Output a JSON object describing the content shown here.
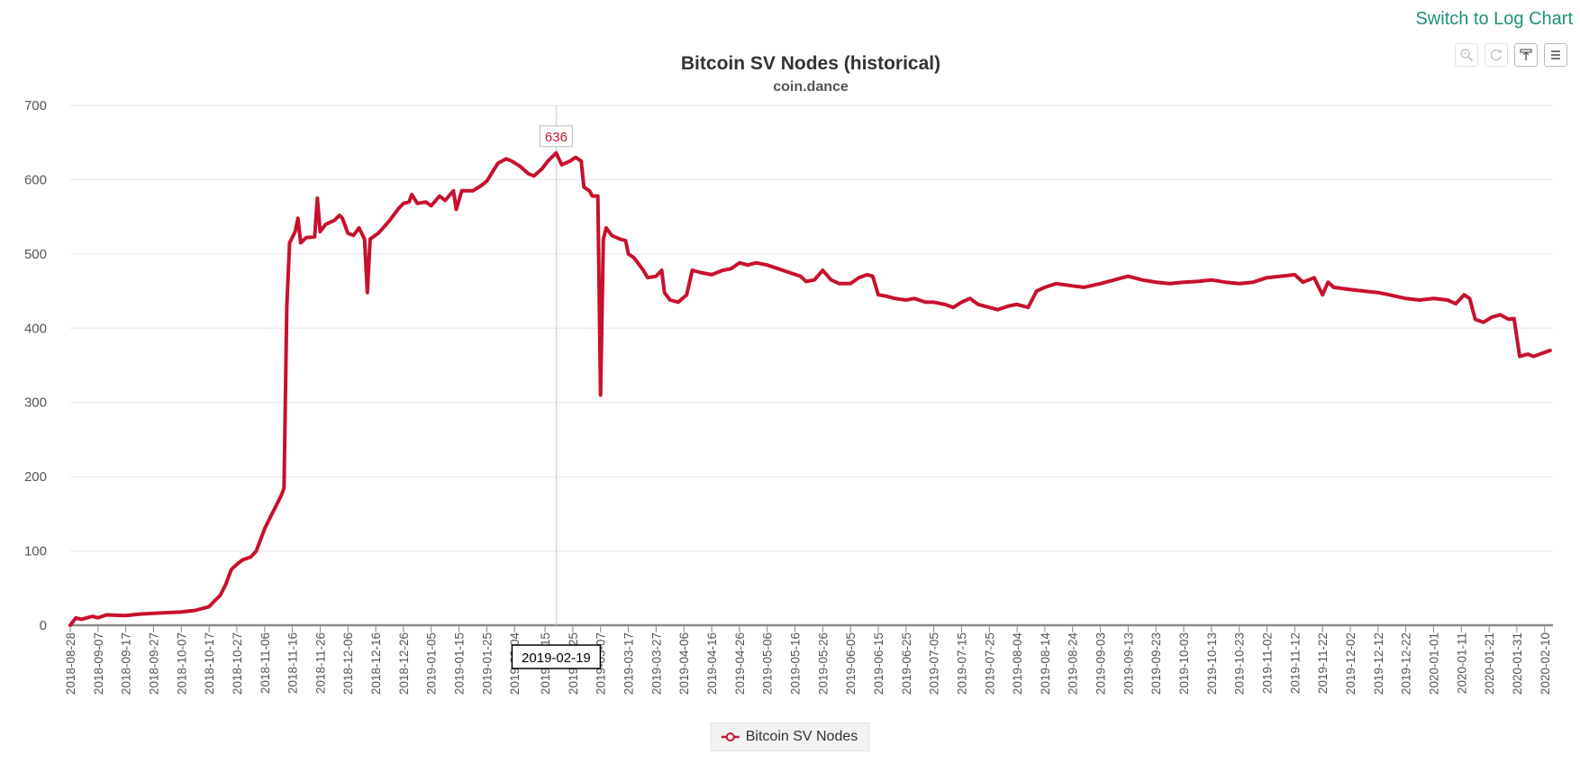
{
  "header": {
    "log_link": "Switch to Log Chart"
  },
  "toolbar": {
    "icons": [
      "zoom-icon",
      "refresh-icon",
      "reset-zoom-icon",
      "menu-icon"
    ]
  },
  "tooltip": {
    "value_label": "636",
    "date_label": "2019-02-19",
    "date": "2019-02-19"
  },
  "legend": {
    "label": "Bitcoin SV Nodes"
  },
  "colors": {
    "series": "#c8102e",
    "link": "#1f8f7a",
    "grid": "#e6e6e6",
    "axis": "#8a8a8a"
  },
  "chart_data": {
    "type": "line",
    "title": "Bitcoin SV Nodes (historical)",
    "subtitle": "coin.dance",
    "xlabel": "",
    "ylabel": "",
    "ylim": [
      0,
      700
    ],
    "xlim": [
      "2018-08-28",
      "2020-02-13"
    ],
    "yticks": [
      0,
      100,
      200,
      300,
      400,
      500,
      600,
      700
    ],
    "xticks": [
      "2018-08-28",
      "2018-09-07",
      "2018-09-17",
      "2018-09-27",
      "2018-10-07",
      "2018-10-17",
      "2018-10-27",
      "2018-11-06",
      "2018-11-16",
      "2018-11-26",
      "2018-12-06",
      "2018-12-16",
      "2018-12-26",
      "2019-01-05",
      "2019-01-15",
      "2019-01-25",
      "2019-02-04",
      "2019-02-15",
      "2019-02-25",
      "2019-03-07",
      "2019-03-17",
      "2019-03-27",
      "2019-04-06",
      "2019-04-16",
      "2019-04-26",
      "2019-05-06",
      "2019-05-16",
      "2019-05-26",
      "2019-06-05",
      "2019-06-15",
      "2019-06-25",
      "2019-07-05",
      "2019-07-15",
      "2019-07-25",
      "2019-08-04",
      "2019-08-14",
      "2019-08-24",
      "2019-09-03",
      "2019-09-13",
      "2019-09-23",
      "2019-10-03",
      "2019-10-13",
      "2019-10-23",
      "2019-11-02",
      "2019-11-12",
      "2019-11-22",
      "2019-12-02",
      "2019-12-12",
      "2019-12-22",
      "2020-01-01",
      "2020-01-11",
      "2020-01-21",
      "2020-01-31",
      "2020-02-10"
    ],
    "grid": true,
    "legend_position": "bottom-center",
    "series": [
      {
        "name": "Bitcoin SV Nodes",
        "points": [
          [
            "2018-08-28",
            0
          ],
          [
            "2018-08-30",
            10
          ],
          [
            "2018-09-01",
            8
          ],
          [
            "2018-09-05",
            12
          ],
          [
            "2018-09-07",
            10
          ],
          [
            "2018-09-10",
            14
          ],
          [
            "2018-09-17",
            13
          ],
          [
            "2018-09-22",
            15
          ],
          [
            "2018-09-27",
            16
          ],
          [
            "2018-10-02",
            17
          ],
          [
            "2018-10-07",
            18
          ],
          [
            "2018-10-12",
            20
          ],
          [
            "2018-10-17",
            25
          ],
          [
            "2018-10-19",
            33
          ],
          [
            "2018-10-21",
            40
          ],
          [
            "2018-10-23",
            55
          ],
          [
            "2018-10-25",
            75
          ],
          [
            "2018-10-27",
            82
          ],
          [
            "2018-10-29",
            88
          ],
          [
            "2018-11-01",
            92
          ],
          [
            "2018-11-03",
            100
          ],
          [
            "2018-11-05",
            120
          ],
          [
            "2018-11-06",
            130
          ],
          [
            "2018-11-08",
            145
          ],
          [
            "2018-11-10",
            160
          ],
          [
            "2018-11-12",
            175
          ],
          [
            "2018-11-13",
            185
          ],
          [
            "2018-11-14",
            430
          ],
          [
            "2018-11-15",
            515
          ],
          [
            "2018-11-17",
            530
          ],
          [
            "2018-11-18",
            548
          ],
          [
            "2018-11-19",
            515
          ],
          [
            "2018-11-21",
            522
          ],
          [
            "2018-11-24",
            523
          ],
          [
            "2018-11-25",
            575
          ],
          [
            "2018-11-26",
            530
          ],
          [
            "2018-11-28",
            540
          ],
          [
            "2018-12-01",
            545
          ],
          [
            "2018-12-03",
            552
          ],
          [
            "2018-12-04",
            548
          ],
          [
            "2018-12-06",
            528
          ],
          [
            "2018-12-08",
            525
          ],
          [
            "2018-12-10",
            535
          ],
          [
            "2018-12-12",
            520
          ],
          [
            "2018-12-13",
            448
          ],
          [
            "2018-12-14",
            520
          ],
          [
            "2018-12-17",
            528
          ],
          [
            "2018-12-21",
            545
          ],
          [
            "2018-12-24",
            560
          ],
          [
            "2018-12-26",
            568
          ],
          [
            "2018-12-28",
            570
          ],
          [
            "2018-12-29",
            580
          ],
          [
            "2018-12-31",
            568
          ],
          [
            "2019-01-03",
            570
          ],
          [
            "2019-01-05",
            565
          ],
          [
            "2019-01-08",
            578
          ],
          [
            "2019-01-10",
            572
          ],
          [
            "2019-01-13",
            585
          ],
          [
            "2019-01-14",
            560
          ],
          [
            "2019-01-16",
            585
          ],
          [
            "2019-01-20",
            585
          ],
          [
            "2019-01-23",
            592
          ],
          [
            "2019-01-25",
            598
          ],
          [
            "2019-01-27",
            610
          ],
          [
            "2019-01-29",
            622
          ],
          [
            "2019-02-01",
            628
          ],
          [
            "2019-02-03",
            625
          ],
          [
            "2019-02-06",
            618
          ],
          [
            "2019-02-09",
            608
          ],
          [
            "2019-02-11",
            605
          ],
          [
            "2019-02-14",
            615
          ],
          [
            "2019-02-16",
            625
          ],
          [
            "2019-02-19",
            636
          ],
          [
            "2019-02-21",
            620
          ],
          [
            "2019-02-24",
            625
          ],
          [
            "2019-02-26",
            630
          ],
          [
            "2019-02-28",
            625
          ],
          [
            "2019-03-01",
            590
          ],
          [
            "2019-03-03",
            585
          ],
          [
            "2019-03-04",
            578
          ],
          [
            "2019-03-06",
            578
          ],
          [
            "2019-03-07",
            310
          ],
          [
            "2019-03-08",
            520
          ],
          [
            "2019-03-09",
            535
          ],
          [
            "2019-03-11",
            525
          ],
          [
            "2019-03-14",
            520
          ],
          [
            "2019-03-16",
            518
          ],
          [
            "2019-03-17",
            500
          ],
          [
            "2019-03-19",
            495
          ],
          [
            "2019-03-22",
            480
          ],
          [
            "2019-03-24",
            468
          ],
          [
            "2019-03-27",
            470
          ],
          [
            "2019-03-29",
            478
          ],
          [
            "2019-03-30",
            448
          ],
          [
            "2019-04-01",
            438
          ],
          [
            "2019-04-04",
            435
          ],
          [
            "2019-04-07",
            445
          ],
          [
            "2019-04-09",
            478
          ],
          [
            "2019-04-12",
            475
          ],
          [
            "2019-04-16",
            472
          ],
          [
            "2019-04-20",
            478
          ],
          [
            "2019-04-23",
            480
          ],
          [
            "2019-04-26",
            488
          ],
          [
            "2019-04-29",
            485
          ],
          [
            "2019-05-02",
            488
          ],
          [
            "2019-05-06",
            485
          ],
          [
            "2019-05-10",
            480
          ],
          [
            "2019-05-14",
            475
          ],
          [
            "2019-05-18",
            470
          ],
          [
            "2019-05-20",
            463
          ],
          [
            "2019-05-23",
            465
          ],
          [
            "2019-05-26",
            478
          ],
          [
            "2019-05-29",
            465
          ],
          [
            "2019-06-01",
            460
          ],
          [
            "2019-06-05",
            460
          ],
          [
            "2019-06-08",
            468
          ],
          [
            "2019-06-11",
            472
          ],
          [
            "2019-06-13",
            470
          ],
          [
            "2019-06-15",
            445
          ],
          [
            "2019-06-18",
            443
          ],
          [
            "2019-06-21",
            440
          ],
          [
            "2019-06-25",
            438
          ],
          [
            "2019-06-28",
            440
          ],
          [
            "2019-07-02",
            435
          ],
          [
            "2019-07-05",
            435
          ],
          [
            "2019-07-09",
            432
          ],
          [
            "2019-07-12",
            428
          ],
          [
            "2019-07-15",
            435
          ],
          [
            "2019-07-18",
            440
          ],
          [
            "2019-07-21",
            432
          ],
          [
            "2019-07-25",
            428
          ],
          [
            "2019-07-28",
            425
          ],
          [
            "2019-08-01",
            430
          ],
          [
            "2019-08-04",
            432
          ],
          [
            "2019-08-08",
            428
          ],
          [
            "2019-08-11",
            450
          ],
          [
            "2019-08-14",
            455
          ],
          [
            "2019-08-18",
            460
          ],
          [
            "2019-08-24",
            457
          ],
          [
            "2019-08-28",
            455
          ],
          [
            "2019-09-03",
            460
          ],
          [
            "2019-09-08",
            465
          ],
          [
            "2019-09-13",
            470
          ],
          [
            "2019-09-18",
            465
          ],
          [
            "2019-09-23",
            462
          ],
          [
            "2019-09-28",
            460
          ],
          [
            "2019-10-03",
            462
          ],
          [
            "2019-10-08",
            463
          ],
          [
            "2019-10-13",
            465
          ],
          [
            "2019-10-18",
            462
          ],
          [
            "2019-10-23",
            460
          ],
          [
            "2019-10-28",
            462
          ],
          [
            "2019-11-02",
            468
          ],
          [
            "2019-11-07",
            470
          ],
          [
            "2019-11-12",
            472
          ],
          [
            "2019-11-15",
            462
          ],
          [
            "2019-11-19",
            468
          ],
          [
            "2019-11-22",
            445
          ],
          [
            "2019-11-24",
            462
          ],
          [
            "2019-11-26",
            455
          ],
          [
            "2019-12-02",
            452
          ],
          [
            "2019-12-07",
            450
          ],
          [
            "2019-12-12",
            448
          ],
          [
            "2019-12-16",
            445
          ],
          [
            "2019-12-22",
            440
          ],
          [
            "2019-12-27",
            438
          ],
          [
            "2020-01-01",
            440
          ],
          [
            "2020-01-06",
            438
          ],
          [
            "2020-01-09",
            433
          ],
          [
            "2020-01-12",
            445
          ],
          [
            "2020-01-14",
            440
          ],
          [
            "2020-01-16",
            412
          ],
          [
            "2020-01-19",
            408
          ],
          [
            "2020-01-22",
            415
          ],
          [
            "2020-01-25",
            418
          ],
          [
            "2020-01-28",
            412
          ],
          [
            "2020-01-30",
            413
          ],
          [
            "2020-02-01",
            362
          ],
          [
            "2020-02-04",
            365
          ],
          [
            "2020-02-06",
            362
          ],
          [
            "2020-02-09",
            366
          ],
          [
            "2020-02-12",
            370
          ]
        ]
      }
    ]
  }
}
